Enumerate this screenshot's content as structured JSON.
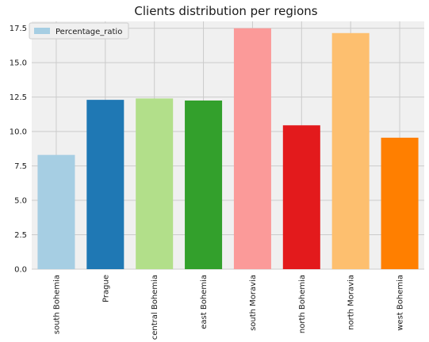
{
  "chart_data": {
    "type": "bar",
    "title": "Clients distribution per regions",
    "xlabel": "",
    "ylabel": "",
    "categories": [
      "south Bohemia",
      "Prague",
      "central Bohemia",
      "east Bohemia",
      "south Moravia",
      "north Bohemia",
      "north Moravia",
      "west Bohemia"
    ],
    "series": [
      {
        "name": "Percentage_ratio",
        "values": [
          8.3,
          12.3,
          12.4,
          12.25,
          17.5,
          10.45,
          17.15,
          9.55
        ],
        "colors": [
          "#a6cee3",
          "#1f78b4",
          "#b2df8a",
          "#33a02c",
          "#fb9a99",
          "#e31a1c",
          "#fdbf6f",
          "#ff7f00"
        ]
      }
    ],
    "ylim": [
      0,
      18.0
    ],
    "yticks": [
      "0.0",
      "2.5",
      "5.0",
      "7.5",
      "10.0",
      "12.5",
      "15.0",
      "17.5"
    ],
    "grid": true,
    "legend_position": "top-left",
    "background_color": "#f0f0f0"
  }
}
